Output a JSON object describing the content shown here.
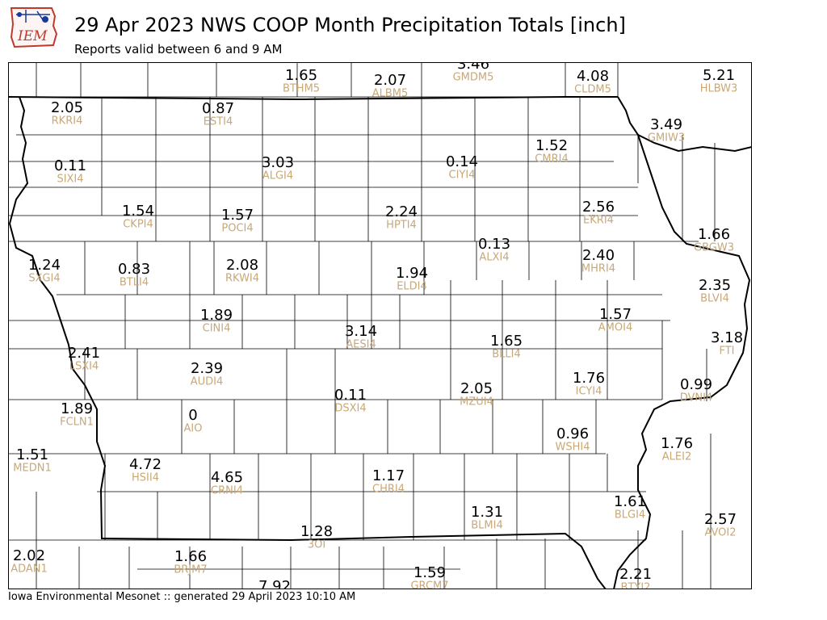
{
  "header": {
    "title": "29 Apr 2023 NWS COOP Month Precipitation Totals [inch]",
    "subtitle": "Reports valid between 6 and 9 AM",
    "logo_text": "IEM"
  },
  "footer": {
    "text": "Iowa Environmental Mesonet :: generated 29 April 2023 10:10 AM"
  },
  "colors": {
    "value": "#000000",
    "station": "#c8a878",
    "border": "#000000",
    "logo_red": "#c0392b",
    "logo_blue": "#1a3a9a"
  },
  "stations": [
    {
      "value": "1.65",
      "id": "BTHM5"
    },
    {
      "value": "2.07",
      "id": "ALBM5"
    },
    {
      "value": "3.46",
      "id": "GMDM5"
    },
    {
      "value": "4.08",
      "id": "CLDM5"
    },
    {
      "value": "5.21",
      "id": "HLBW3"
    },
    {
      "value": "2.05",
      "id": "RKRI4"
    },
    {
      "value": "0.87",
      "id": "ESTI4"
    },
    {
      "value": "3.49",
      "id": "GMIW3"
    },
    {
      "value": "0.11",
      "id": "SIXI4"
    },
    {
      "value": "3.03",
      "id": "ALGI4"
    },
    {
      "value": "0.14",
      "id": "CIYI4"
    },
    {
      "value": "1.52",
      "id": "CMRI4"
    },
    {
      "value": "1.54",
      "id": "CKPI4"
    },
    {
      "value": "1.57",
      "id": "POCI4"
    },
    {
      "value": "2.24",
      "id": "HPTI4"
    },
    {
      "value": "2.56",
      "id": "EKRI4"
    },
    {
      "value": "1.66",
      "id": "GBGW3"
    },
    {
      "value": "0.13",
      "id": "ALXI4"
    },
    {
      "value": "1.24",
      "id": "SXGI4"
    },
    {
      "value": "0.83",
      "id": "BTLI4"
    },
    {
      "value": "2.08",
      "id": "RKWI4"
    },
    {
      "value": "2.40",
      "id": "MHRI4"
    },
    {
      "value": "1.94",
      "id": "ELDI4"
    },
    {
      "value": "2.35",
      "id": "BLVI4"
    },
    {
      "value": "1.89",
      "id": "CINI4"
    },
    {
      "value": "1.57",
      "id": "AMOI4"
    },
    {
      "value": "3.14",
      "id": "AESI4"
    },
    {
      "value": "3.18",
      "id": "FTI"
    },
    {
      "value": "1.65",
      "id": "BLLI4"
    },
    {
      "value": "2.41",
      "id": "LSXI4"
    },
    {
      "value": "2.39",
      "id": "AUDI4"
    },
    {
      "value": "1.76",
      "id": "ICYI4"
    },
    {
      "value": "0.99",
      "id": "DVNI4"
    },
    {
      "value": "2.05",
      "id": "MZUI4"
    },
    {
      "value": "0.11",
      "id": "DSXI4"
    },
    {
      "value": "1.89",
      "id": "FCLN1"
    },
    {
      "value": "0",
      "id": "AIO"
    },
    {
      "value": "0.96",
      "id": "WSHI4"
    },
    {
      "value": "1.76",
      "id": "ALEI2"
    },
    {
      "value": "1.51",
      "id": "MEDN1"
    },
    {
      "value": "4.72",
      "id": "HSII4"
    },
    {
      "value": "4.65",
      "id": "CRNI4"
    },
    {
      "value": "1.17",
      "id": "CHRI4"
    },
    {
      "value": "1.31",
      "id": "BLMI4"
    },
    {
      "value": "1.61",
      "id": "BLGI4"
    },
    {
      "value": "2.57",
      "id": "AVOI2"
    },
    {
      "value": "1.28",
      "id": "3OI"
    },
    {
      "value": "2.02",
      "id": "ADAN1"
    },
    {
      "value": "1.66",
      "id": "BRJM7"
    },
    {
      "value": "1.59",
      "id": "GRCM7"
    },
    {
      "value": "2.21",
      "id": "BTYI2"
    },
    {
      "value": "7.92",
      "id": ""
    }
  ]
}
